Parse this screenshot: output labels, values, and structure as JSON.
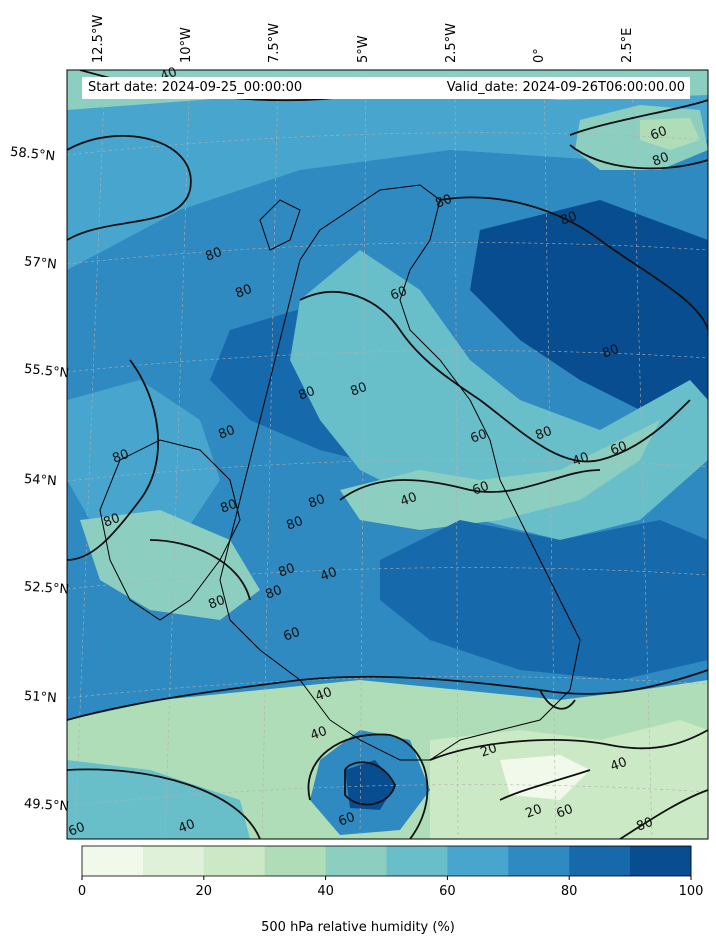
{
  "header": {
    "start_date": "Start date: 2024-09-25_00:00:00",
    "valid_date": "Valid_date: 2024-09-26T06:00:00.00"
  },
  "axes": {
    "longitude_labels": [
      "12.5°W",
      "10°W",
      "7.5°W",
      "5°W",
      "2.5°W",
      "0°",
      "2.5°E"
    ],
    "latitude_labels": [
      "58.5°N",
      "57°N",
      "55.5°N",
      "54°N",
      "52.5°N",
      "51°N",
      "49.5°N"
    ]
  },
  "contour_labels": [
    "40",
    "60",
    "80",
    "80",
    "80",
    "60",
    "80",
    "80",
    "80",
    "80",
    "80",
    "80",
    "60",
    "80",
    "40",
    "60",
    "60",
    "40",
    "80",
    "80",
    "80",
    "80",
    "80",
    "80",
    "80",
    "80",
    "60",
    "40",
    "40",
    "40",
    "20",
    "40",
    "20",
    "60",
    "80",
    "60",
    "40",
    "60"
  ],
  "colorbar": {
    "label": "500 hPa relative humidity (%)",
    "ticks": [
      "0",
      "20",
      "40",
      "60",
      "80",
      "100"
    ],
    "colors": [
      "#f1faea",
      "#dff2d9",
      "#cae9c4",
      "#aeddb8",
      "#8ccfc0",
      "#68bfca",
      "#48a6ce",
      "#2e8ac0",
      "#1669ab",
      "#094d91"
    ]
  }
}
